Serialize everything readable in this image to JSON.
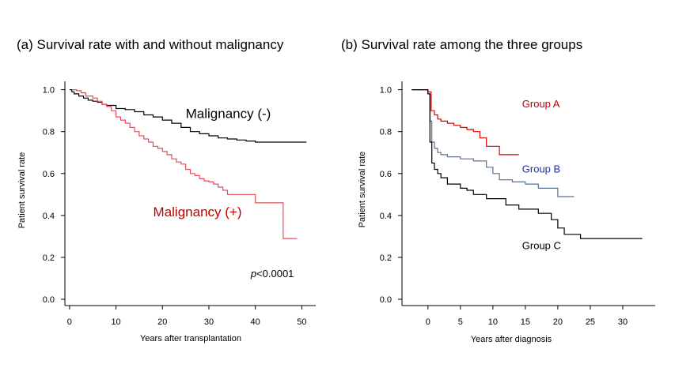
{
  "chart_data": [
    {
      "type": "line",
      "step": true,
      "title": "(a) Survival rate with and without malignancy",
      "xlabel": "Years after transplantation",
      "ylabel": "Patient survival rate",
      "xlim": [
        -1,
        53
      ],
      "ylim": [
        -0.03,
        1.04
      ],
      "xticks": [
        0,
        10,
        20,
        30,
        40,
        50
      ],
      "yticks": [
        0.0,
        0.2,
        0.4,
        0.6,
        0.8,
        1.0
      ],
      "grid": false,
      "series": [
        {
          "name": "Malignancy (-)",
          "color": "#000000",
          "x": [
            0,
            0.5,
            1,
            2,
            3,
            4,
            5,
            6,
            7,
            8,
            10,
            12,
            14,
            16,
            18,
            20,
            22,
            24,
            26,
            28,
            30,
            32,
            34,
            36,
            38,
            40,
            51
          ],
          "y": [
            1.0,
            0.99,
            0.98,
            0.97,
            0.96,
            0.95,
            0.945,
            0.94,
            0.93,
            0.925,
            0.91,
            0.905,
            0.895,
            0.88,
            0.87,
            0.855,
            0.84,
            0.82,
            0.8,
            0.79,
            0.78,
            0.77,
            0.765,
            0.76,
            0.755,
            0.75,
            0.75
          ]
        },
        {
          "name": "Malignancy (+)",
          "color": "#e0505a",
          "x": [
            0.5,
            1.5,
            2.5,
            3.5,
            5,
            6,
            7,
            8,
            9,
            10,
            11,
            12,
            13,
            14,
            15,
            16,
            17,
            18,
            19,
            20,
            21,
            22,
            23,
            24,
            25,
            26,
            27,
            28,
            29,
            30,
            31,
            32,
            33,
            34,
            36,
            39,
            40,
            42,
            46,
            47,
            49
          ],
          "y": [
            1.0,
            0.995,
            0.985,
            0.97,
            0.96,
            0.945,
            0.93,
            0.92,
            0.9,
            0.87,
            0.855,
            0.84,
            0.82,
            0.8,
            0.78,
            0.765,
            0.75,
            0.73,
            0.72,
            0.705,
            0.69,
            0.67,
            0.655,
            0.645,
            0.62,
            0.6,
            0.59,
            0.575,
            0.565,
            0.56,
            0.55,
            0.535,
            0.52,
            0.5,
            0.5,
            0.5,
            0.46,
            0.46,
            0.29,
            0.29,
            0.29
          ]
        }
      ],
      "annotations": [
        {
          "text": "Malignancy (-)",
          "x": 25,
          "y": 0.865,
          "color": "#000000",
          "italic_prefix": ""
        },
        {
          "text": "Malignancy (+)",
          "x": 18,
          "y": 0.395,
          "color": "#c00000",
          "italic_prefix": ""
        },
        {
          "text": "<0.0001",
          "italic_prefix": "p",
          "x": 39,
          "y": 0.105,
          "color": "#000000"
        }
      ]
    },
    {
      "type": "line",
      "step": true,
      "title": "(b) Survival rate among the three groups",
      "xlabel": "Years after diagnosis",
      "ylabel": "Patient survival rate",
      "xlim": [
        -4,
        35
      ],
      "ylim": [
        -0.03,
        1.04
      ],
      "xticks": [
        0,
        5,
        10,
        15,
        20,
        25,
        30
      ],
      "yticks": [
        0.0,
        0.2,
        0.4,
        0.6,
        0.8,
        1.0
      ],
      "grid": false,
      "series": [
        {
          "name": "Group A",
          "color": "#e00000",
          "x": [
            -2.5,
            0,
            0.5,
            1,
            1.5,
            2,
            3,
            4,
            5,
            6,
            7,
            8,
            9,
            10,
            11,
            12,
            14
          ],
          "y": [
            1.0,
            0.99,
            0.9,
            0.88,
            0.86,
            0.85,
            0.84,
            0.83,
            0.82,
            0.81,
            0.8,
            0.77,
            0.73,
            0.73,
            0.69,
            0.69,
            0.69
          ]
        },
        {
          "name": "Group B",
          "color": "#5a7090",
          "x": [
            -2.5,
            0,
            0.3,
            0.6,
            1,
            1.5,
            2,
            3,
            5,
            7,
            9,
            10,
            11,
            13,
            15,
            17,
            20,
            22.5
          ],
          "y": [
            1.0,
            0.98,
            0.85,
            0.75,
            0.72,
            0.7,
            0.69,
            0.68,
            0.67,
            0.66,
            0.63,
            0.6,
            0.57,
            0.56,
            0.55,
            0.53,
            0.49,
            0.49
          ]
        },
        {
          "name": "Group C",
          "color": "#000000",
          "x": [
            -2.5,
            0,
            0.3,
            0.6,
            1,
            1.5,
            2,
            3,
            5,
            6,
            7,
            9,
            12,
            14,
            17,
            19,
            20,
            21,
            23.5,
            33
          ],
          "y": [
            1.0,
            0.98,
            0.75,
            0.65,
            0.62,
            0.6,
            0.58,
            0.55,
            0.53,
            0.52,
            0.5,
            0.48,
            0.45,
            0.43,
            0.41,
            0.38,
            0.34,
            0.31,
            0.29,
            0.29
          ]
        }
      ],
      "annotations": [
        {
          "text": "Group A",
          "x": 14.5,
          "y": 0.915,
          "color": "#c00000",
          "italic_prefix": ""
        },
        {
          "text": "Group B",
          "x": 14.5,
          "y": 0.605,
          "color": "#2030a0",
          "italic_prefix": ""
        },
        {
          "text": "Group C",
          "x": 14.5,
          "y": 0.24,
          "color": "#000000",
          "italic_prefix": ""
        }
      ]
    }
  ]
}
